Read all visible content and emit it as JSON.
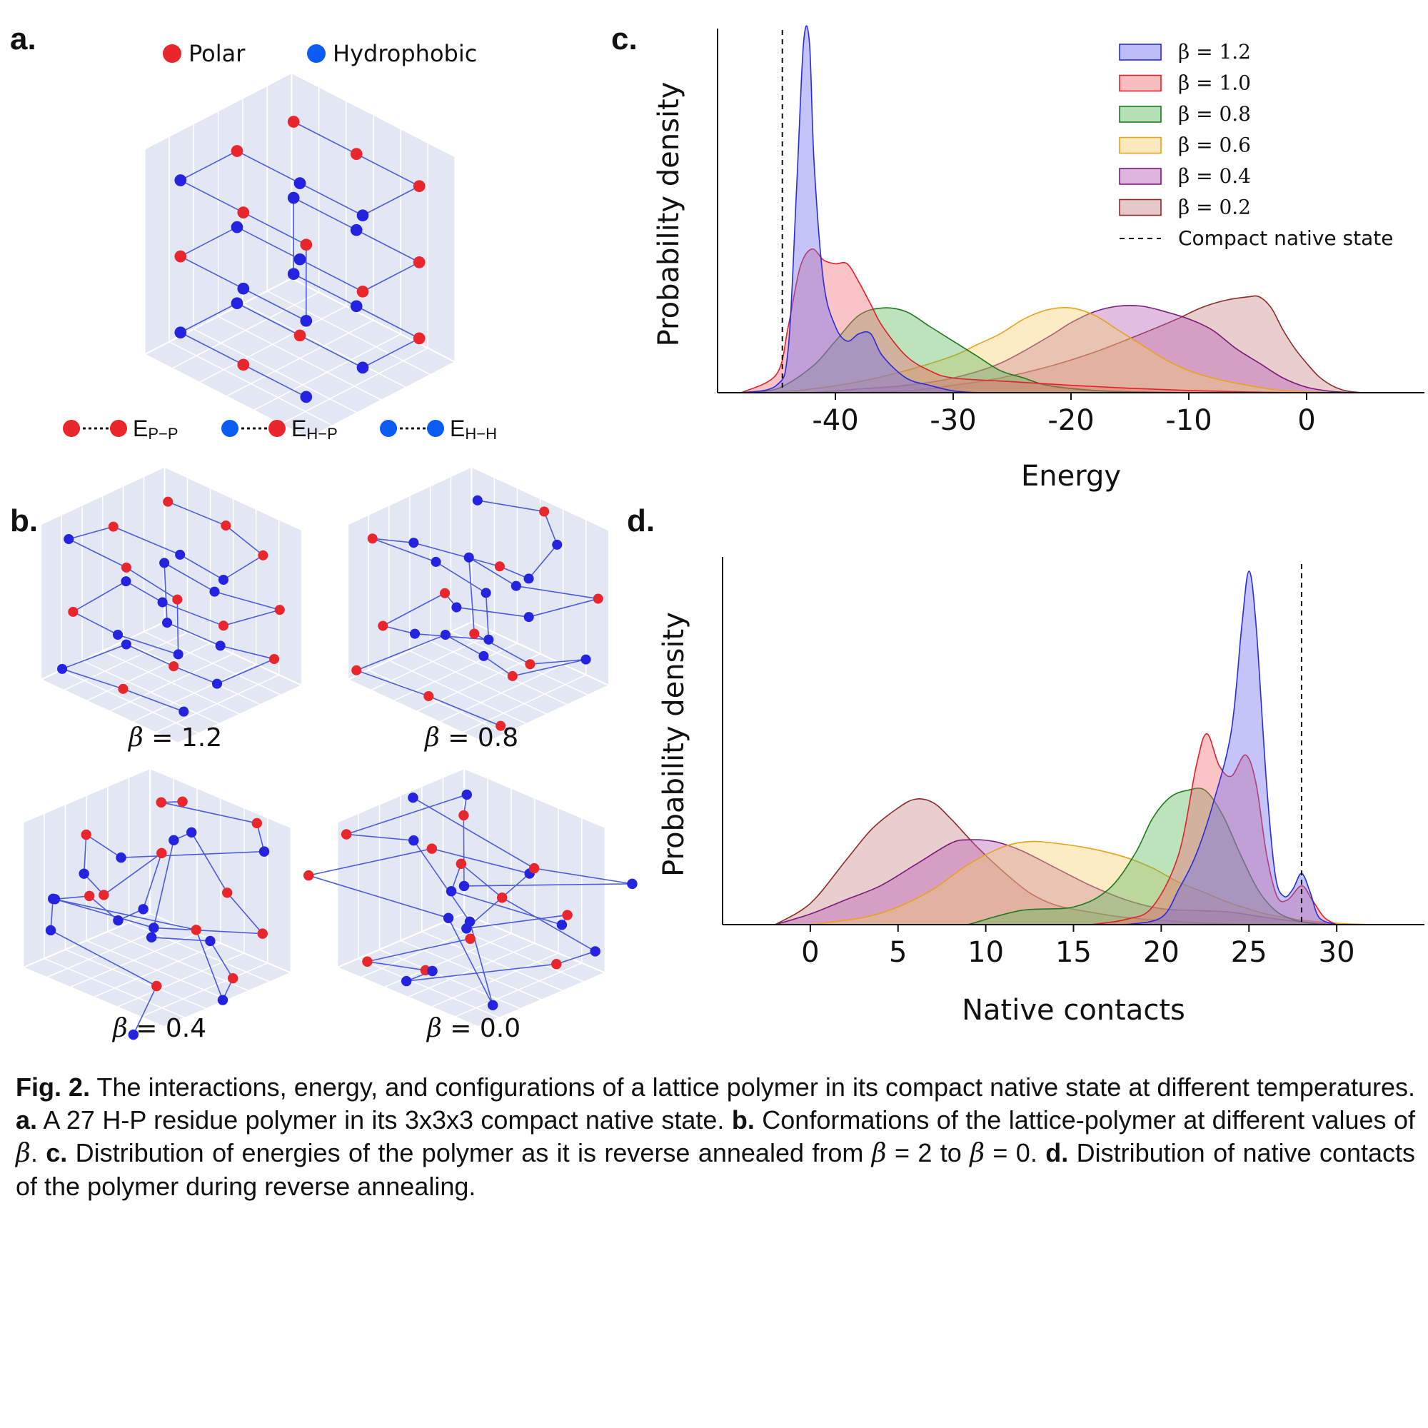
{
  "panels": {
    "a": {
      "letter": "a.",
      "legend_polar": "Polar",
      "legend_hydrophobic": "Hydrophobic",
      "polar_color": "#e8262b",
      "hydrophobic_color": "#0a5cf5",
      "interactions": [
        {
          "label": "E",
          "sub": "P−P"
        },
        {
          "label": "E",
          "sub": "H−P"
        },
        {
          "label": "E",
          "sub": "H−H"
        }
      ]
    },
    "b": {
      "letter": "b.",
      "conformations": [
        {
          "beta_symbol": "β",
          "value_text": " = 1.2"
        },
        {
          "beta_symbol": "β",
          "value_text": " = 0.8"
        },
        {
          "beta_symbol": "β",
          "value_text": " = 0.4"
        },
        {
          "beta_symbol": "β",
          "value_text": " = 0.0"
        }
      ]
    },
    "c": {
      "letter": "c."
    },
    "d": {
      "letter": "d."
    }
  },
  "chart_data": [
    {
      "type": "area",
      "panel": "c",
      "xlabel": "Energy",
      "ylabel": "Probability density",
      "xlim": [
        -50,
        10
      ],
      "xticks": [
        -40,
        -30,
        -20,
        -10,
        0
      ],
      "xtick_labels": [
        "-40",
        "-30",
        "-20",
        "-10",
        "0"
      ],
      "legend_position": "top-right",
      "reference_line": {
        "x": -44.5,
        "label": "Compact native state",
        "style": "dashed"
      },
      "series": [
        {
          "name": "β = 1.2",
          "color": "#2b2bde",
          "fill": "#6b6bf0",
          "points": [
            [
              -48,
              0
            ],
            [
              -45,
              0.02
            ],
            [
              -44,
              0.12
            ],
            [
              -43.3,
              0.55
            ],
            [
              -42.7,
              0.95
            ],
            [
              -42.2,
              0.95
            ],
            [
              -41.8,
              0.62
            ],
            [
              -41,
              0.3
            ],
            [
              -40,
              0.18
            ],
            [
              -39,
              0.14
            ],
            [
              -38,
              0.16
            ],
            [
              -37,
              0.16
            ],
            [
              -36,
              0.1
            ],
            [
              -34,
              0.04
            ],
            [
              -32,
              0.02
            ],
            [
              -30,
              0.005
            ],
            [
              -28,
              0
            ]
          ]
        },
        {
          "name": "β = 1.0",
          "color": "#e0202a",
          "fill": "#f26a70",
          "points": [
            [
              -48,
              0
            ],
            [
              -45,
              0.05
            ],
            [
              -44,
              0.18
            ],
            [
              -43,
              0.34
            ],
            [
              -42,
              0.39
            ],
            [
              -41,
              0.36
            ],
            [
              -40,
              0.35
            ],
            [
              -39,
              0.35
            ],
            [
              -38,
              0.3
            ],
            [
              -37,
              0.24
            ],
            [
              -36,
              0.18
            ],
            [
              -34,
              0.1
            ],
            [
              -32,
              0.06
            ],
            [
              -30,
              0.04
            ],
            [
              -25,
              0.03
            ],
            [
              -20,
              0.02
            ],
            [
              -15,
              0.012
            ],
            [
              -10,
              0.006
            ],
            [
              -5,
              0.002
            ],
            [
              0,
              0
            ]
          ]
        },
        {
          "name": "β = 0.8",
          "color": "#1e7a1e",
          "fill": "#5bb85b",
          "points": [
            [
              -48,
              0
            ],
            [
              -45,
              0.01
            ],
            [
              -42,
              0.07
            ],
            [
              -40,
              0.14
            ],
            [
              -38,
              0.21
            ],
            [
              -36,
              0.23
            ],
            [
              -34,
              0.22
            ],
            [
              -32,
              0.18
            ],
            [
              -30,
              0.14
            ],
            [
              -28,
              0.1
            ],
            [
              -26,
              0.06
            ],
            [
              -24,
              0.04
            ],
            [
              -22,
              0.02
            ],
            [
              -18,
              0.006
            ],
            [
              -14,
              0.002
            ],
            [
              -10,
              0
            ]
          ]
        },
        {
          "name": "β = 0.6",
          "color": "#e8a21a",
          "fill": "#f7cf6c",
          "points": [
            [
              -46,
              0
            ],
            [
              -42,
              0.01
            ],
            [
              -38,
              0.03
            ],
            [
              -34,
              0.06
            ],
            [
              -30,
              0.1
            ],
            [
              -28,
              0.13
            ],
            [
              -26,
              0.16
            ],
            [
              -24,
              0.2
            ],
            [
              -22,
              0.225
            ],
            [
              -20,
              0.23
            ],
            [
              -18,
              0.21
            ],
            [
              -16,
              0.17
            ],
            [
              -14,
              0.13
            ],
            [
              -12,
              0.09
            ],
            [
              -10,
              0.06
            ],
            [
              -8,
              0.04
            ],
            [
              -5,
              0.02
            ],
            [
              -2,
              0.006
            ],
            [
              2,
              0
            ]
          ]
        },
        {
          "name": "β = 0.4",
          "color": "#7a1a7a",
          "fill": "#b35ab3",
          "points": [
            [
              -42,
              0
            ],
            [
              -38,
              0.01
            ],
            [
              -34,
              0.02
            ],
            [
              -30,
              0.04
            ],
            [
              -26,
              0.08
            ],
            [
              -22,
              0.15
            ],
            [
              -20,
              0.19
            ],
            [
              -18,
              0.22
            ],
            [
              -16,
              0.235
            ],
            [
              -14,
              0.235
            ],
            [
              -12,
              0.22
            ],
            [
              -10,
              0.2
            ],
            [
              -8,
              0.17
            ],
            [
              -6,
              0.12
            ],
            [
              -4,
              0.08
            ],
            [
              -2,
              0.04
            ],
            [
              0,
              0.015
            ],
            [
              2,
              0.004
            ],
            [
              4,
              0
            ]
          ]
        },
        {
          "name": "β = 0.2",
          "color": "#8f2a2a",
          "fill": "#c98484",
          "points": [
            [
              -40,
              0
            ],
            [
              -34,
              0.005
            ],
            [
              -30,
              0.02
            ],
            [
              -26,
              0.04
            ],
            [
              -22,
              0.07
            ],
            [
              -18,
              0.11
            ],
            [
              -14,
              0.16
            ],
            [
              -11,
              0.2
            ],
            [
              -9,
              0.23
            ],
            [
              -7,
              0.25
            ],
            [
              -5,
              0.26
            ],
            [
              -4,
              0.26
            ],
            [
              -3,
              0.23
            ],
            [
              -2,
              0.17
            ],
            [
              -1,
              0.12
            ],
            [
              0,
              0.08
            ],
            [
              1,
              0.045
            ],
            [
              2,
              0.022
            ],
            [
              3,
              0.008
            ],
            [
              4,
              0.002
            ],
            [
              5,
              0
            ]
          ]
        }
      ]
    },
    {
      "type": "area",
      "panel": "d",
      "xlabel": "Native contacts",
      "ylabel": "Probability density",
      "xlim": [
        -5,
        35
      ],
      "xticks": [
        0,
        5,
        10,
        15,
        20,
        25,
        30
      ],
      "xtick_labels": [
        "0",
        "5",
        "10",
        "15",
        "20",
        "25",
        "30"
      ],
      "reference_line": {
        "x": 28,
        "style": "dashed"
      },
      "series": [
        {
          "name": "β = 1.2",
          "color": "#2b2bde",
          "fill": "#6b6bf0",
          "points": [
            [
              18,
              0
            ],
            [
              20,
              0.02
            ],
            [
              21,
              0.1
            ],
            [
              22,
              0.2
            ],
            [
              23,
              0.35
            ],
            [
              24,
              0.55
            ],
            [
              24.6,
              0.85
            ],
            [
              25,
              1.0
            ],
            [
              25.4,
              0.85
            ],
            [
              26,
              0.4
            ],
            [
              26.5,
              0.14
            ],
            [
              27,
              0.08
            ],
            [
              27.5,
              0.1
            ],
            [
              28,
              0.145
            ],
            [
              28.5,
              0.09
            ],
            [
              29,
              0.02
            ],
            [
              30,
              0
            ]
          ]
        },
        {
          "name": "β = 1.0",
          "color": "#e0202a",
          "fill": "#f26a70",
          "points": [
            [
              16,
              0
            ],
            [
              18,
              0.015
            ],
            [
              19.5,
              0.05
            ],
            [
              21,
              0.2
            ],
            [
              22,
              0.45
            ],
            [
              22.6,
              0.54
            ],
            [
              23.3,
              0.45
            ],
            [
              24,
              0.42
            ],
            [
              24.8,
              0.48
            ],
            [
              25.4,
              0.4
            ],
            [
              26,
              0.2
            ],
            [
              26.6,
              0.08
            ],
            [
              27.2,
              0.07
            ],
            [
              28,
              0.11
            ],
            [
              28.6,
              0.07
            ],
            [
              29.3,
              0.02
            ],
            [
              30,
              0
            ]
          ]
        },
        {
          "name": "β = 0.8",
          "color": "#1e7a1e",
          "fill": "#5bb85b",
          "points": [
            [
              9,
              0
            ],
            [
              12,
              0.04
            ],
            [
              15,
              0.05
            ],
            [
              17,
              0.1
            ],
            [
              18.5,
              0.2
            ],
            [
              19.5,
              0.3
            ],
            [
              20.5,
              0.36
            ],
            [
              21.5,
              0.38
            ],
            [
              22.5,
              0.38
            ],
            [
              23.5,
              0.31
            ],
            [
              24.5,
              0.2
            ],
            [
              25.5,
              0.1
            ],
            [
              26.5,
              0.04
            ],
            [
              27.5,
              0.015
            ],
            [
              28.5,
              0.004
            ],
            [
              29.5,
              0
            ]
          ]
        },
        {
          "name": "β = 0.6",
          "color": "#e8a21a",
          "fill": "#f7cf6c",
          "points": [
            [
              0,
              0
            ],
            [
              3,
              0.02
            ],
            [
              5,
              0.05
            ],
            [
              7,
              0.1
            ],
            [
              9,
              0.17
            ],
            [
              11,
              0.22
            ],
            [
              12.5,
              0.235
            ],
            [
              14,
              0.23
            ],
            [
              16,
              0.215
            ],
            [
              18,
              0.19
            ],
            [
              19.5,
              0.16
            ],
            [
              21,
              0.12
            ],
            [
              22.5,
              0.09
            ],
            [
              24,
              0.06
            ],
            [
              26,
              0.03
            ],
            [
              28,
              0.013
            ],
            [
              30,
              0.004
            ],
            [
              32,
              0
            ]
          ]
        },
        {
          "name": "β = 0.4",
          "color": "#7a1a7a",
          "fill": "#b35ab3",
          "points": [
            [
              -2,
              0
            ],
            [
              0,
              0.03
            ],
            [
              2,
              0.07
            ],
            [
              4,
              0.11
            ],
            [
              6,
              0.17
            ],
            [
              8,
              0.23
            ],
            [
              9,
              0.24
            ],
            [
              10.5,
              0.235
            ],
            [
              12,
              0.21
            ],
            [
              14,
              0.16
            ],
            [
              16,
              0.11
            ],
            [
              18,
              0.07
            ],
            [
              20,
              0.045
            ],
            [
              22,
              0.04
            ],
            [
              24,
              0.035
            ],
            [
              26,
              0.02
            ],
            [
              28,
              0.008
            ],
            [
              30,
              0
            ]
          ]
        },
        {
          "name": "β = 0.2",
          "color": "#8f2a2a",
          "fill": "#c98484",
          "points": [
            [
              -2,
              0
            ],
            [
              0,
              0.06
            ],
            [
              2,
              0.18
            ],
            [
              3.5,
              0.27
            ],
            [
              5,
              0.33
            ],
            [
              6,
              0.355
            ],
            [
              7,
              0.345
            ],
            [
              8,
              0.3
            ],
            [
              9.5,
              0.22
            ],
            [
              11,
              0.15
            ],
            [
              12.5,
              0.09
            ],
            [
              14,
              0.055
            ],
            [
              16,
              0.035
            ],
            [
              18,
              0.02
            ],
            [
              20,
              0.012
            ],
            [
              22,
              0.006
            ],
            [
              24,
              0.002
            ],
            [
              26,
              0
            ]
          ]
        }
      ]
    }
  ],
  "caption": {
    "fig": "Fig. 2.",
    "intro": " The interactions, energy, and configurations of a lattice polymer in its compact native state at different temperatures. ",
    "a_label": "a.",
    "a_text": " A 27 H-P residue polymer in its 3x3x3 compact native state. ",
    "b_label": "b.",
    "b_text": " Conformations of the lattice-polymer at different values of ",
    "beta": "β",
    "b_end": ". ",
    "c_label": "c.",
    "c_text": " Distribution of energies of the polymer as it is reverse annealed from ",
    "c_eq1": " = 2 to ",
    "c_eq2": " = 0. ",
    "d_label": "d.",
    "d_text": " Distribution of native contacts of the polymer during reverse annealing."
  }
}
